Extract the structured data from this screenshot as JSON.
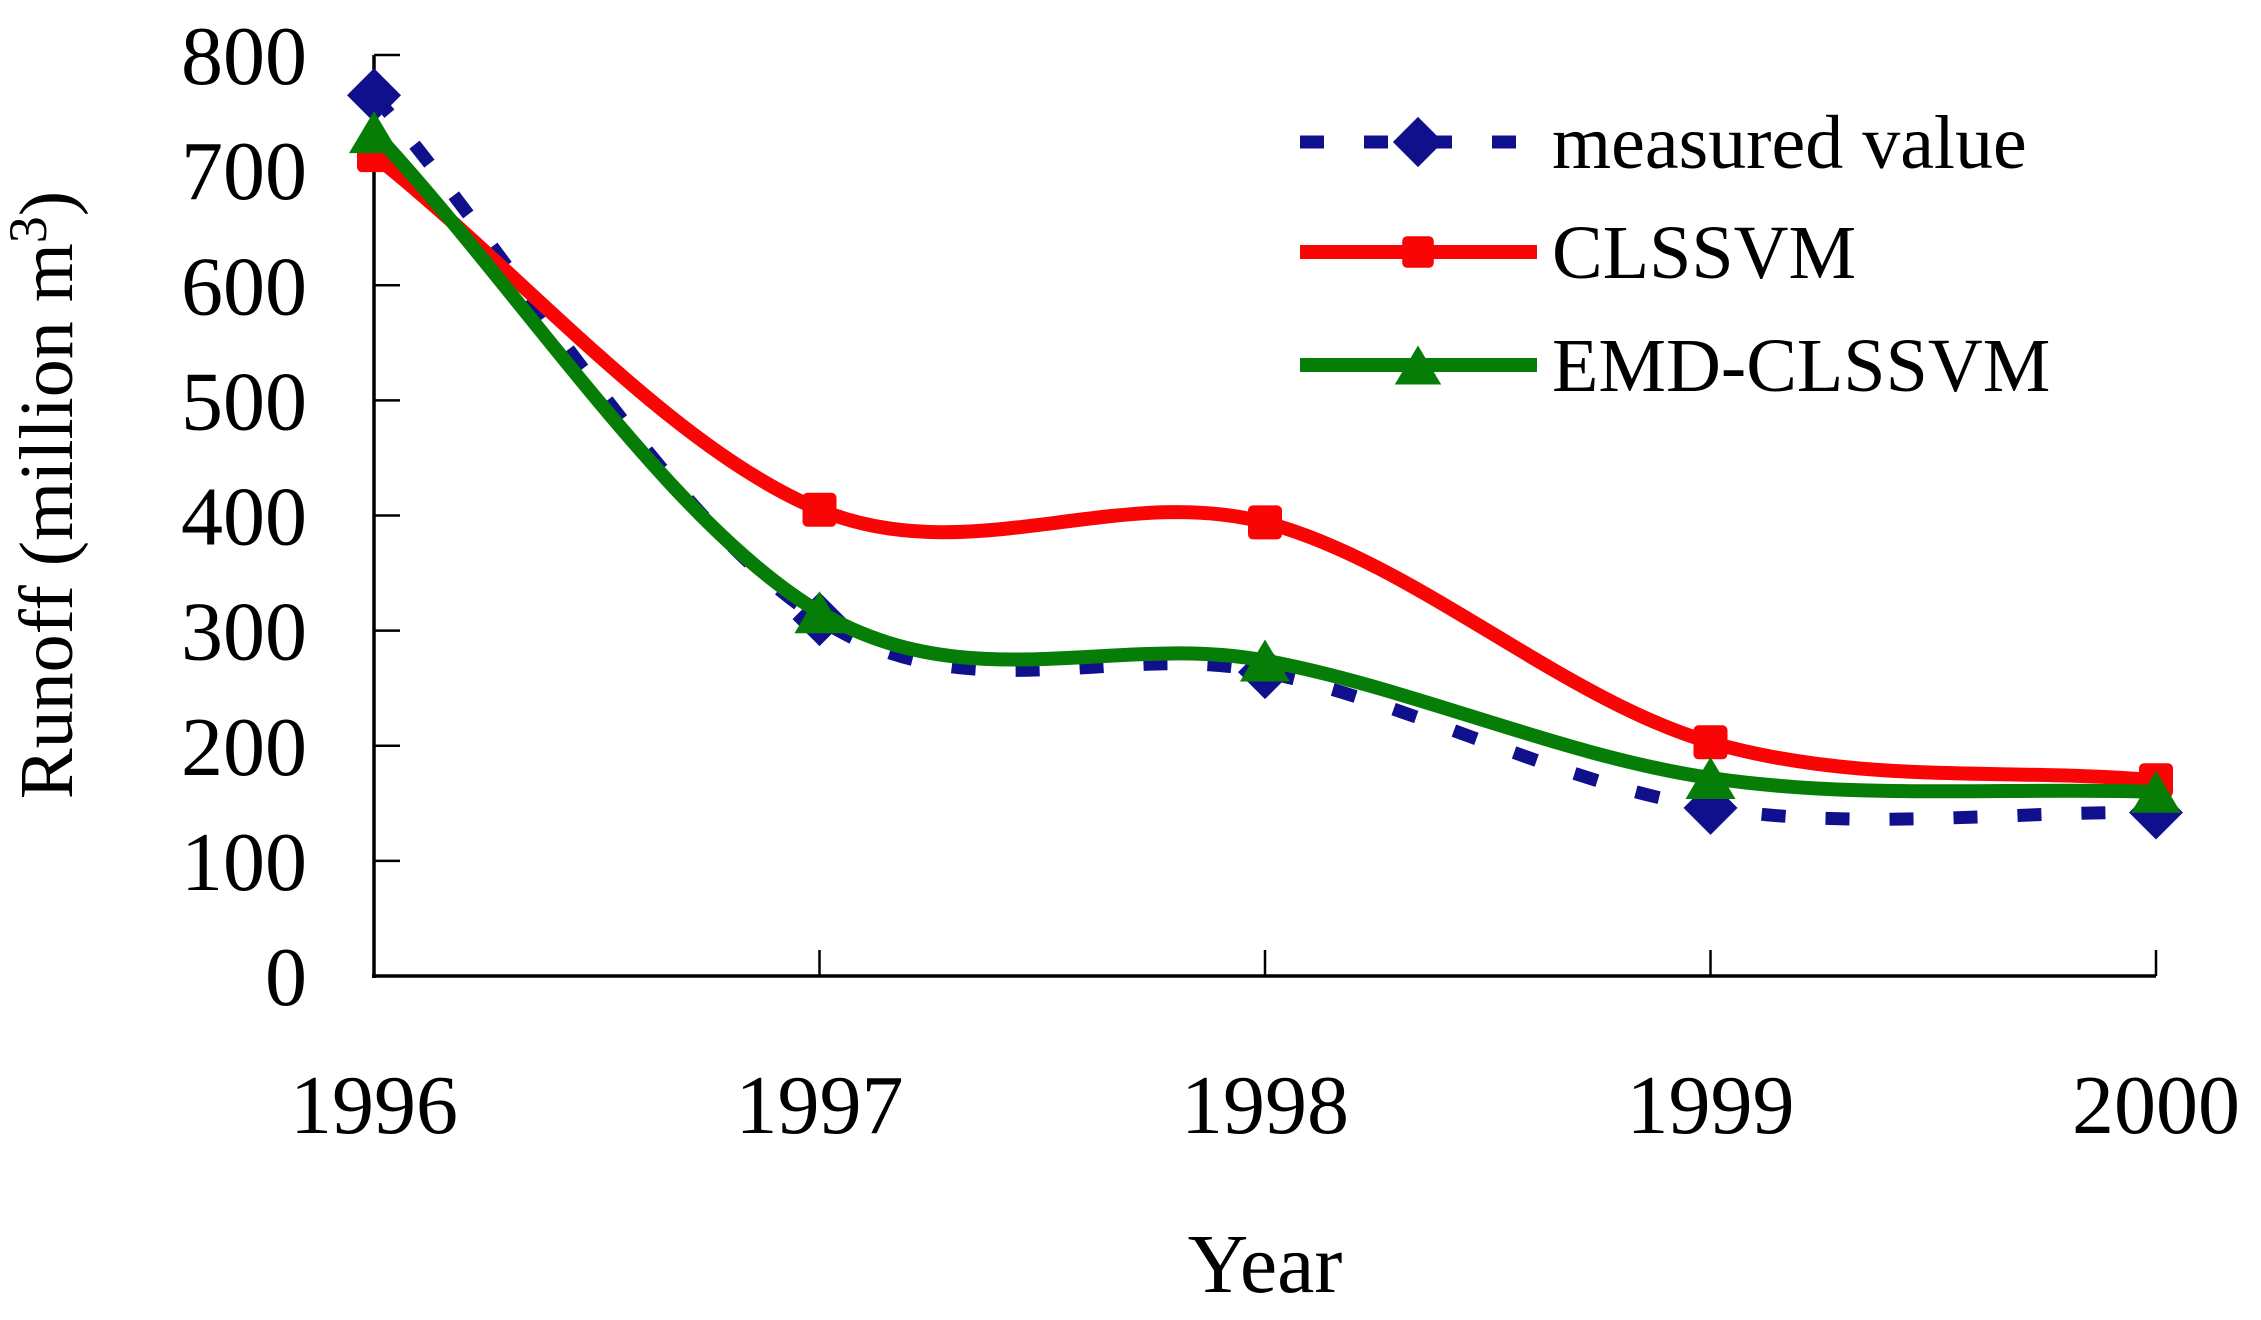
{
  "figure": {
    "background": "#ffffff",
    "axis_color": "#000000"
  },
  "chart_data": {
    "type": "line",
    "title": "",
    "xlabel": "Year",
    "ylabel": "Runoff (million m³)",
    "ylabel_parts": {
      "prefix": "Runoff (million m",
      "superscript": "3",
      "suffix": ")"
    },
    "categories": [
      "1996",
      "1997",
      "1998",
      "1999",
      "2000"
    ],
    "series": [
      {
        "name": "measured value",
        "color": "#10108c",
        "line_style": "dashed",
        "marker": "diamond",
        "values": [
          765,
          310,
          264,
          146,
          142
        ]
      },
      {
        "name": "CLSSVM",
        "color": "#fa0505",
        "line_style": "solid",
        "marker": "square",
        "values": [
          713,
          405,
          394,
          203,
          170
        ]
      },
      {
        "name": "EMD-CLSSVM",
        "color": "#067d06",
        "line_style": "solid",
        "marker": "triangle",
        "values": [
          733,
          316,
          274,
          172,
          160
        ]
      }
    ],
    "ylim": [
      0,
      800
    ],
    "ytick_step": 100,
    "ytick_labels": [
      "0",
      "100",
      "200",
      "300",
      "400",
      "500",
      "600",
      "700",
      "800"
    ],
    "grid": false,
    "legend_position": "top-right",
    "smoothed": true
  }
}
